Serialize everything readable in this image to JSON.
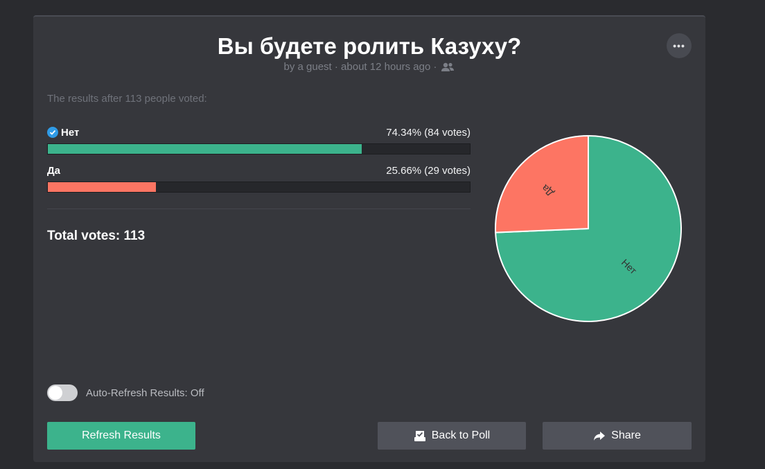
{
  "poll": {
    "title": "Вы будете ролить Казуху?",
    "meta_text": "by a guest · about 12 hours ago ·",
    "results_intro": "The results after 113 people voted:",
    "total_label": "Total votes: 113"
  },
  "options": [
    {
      "name": "Нет",
      "stat": "74.34% (84 votes)",
      "percent": 74.34,
      "votes": 84,
      "color": "#3cb38c",
      "selected": true
    },
    {
      "name": "Да",
      "stat": "25.66% (29 votes)",
      "percent": 25.66,
      "votes": 29,
      "color": "#fd7563",
      "selected": false
    }
  ],
  "chart_data": {
    "type": "pie",
    "labels": [
      "Нет",
      "Да"
    ],
    "values": [
      84,
      29
    ],
    "colors": [
      "#3cb38c",
      "#fd7563"
    ]
  },
  "controls": {
    "auto_refresh_label": "Auto-Refresh Results: Off",
    "auto_refresh_on": false,
    "refresh_label": "Refresh Results",
    "back_label": "Back to Poll",
    "share_label": "Share"
  },
  "icons": {
    "more": "more-dots-icon",
    "users": "users-icon",
    "check": "check-circle-icon",
    "ballot": "ballot-icon",
    "share": "share-arrow-icon"
  }
}
